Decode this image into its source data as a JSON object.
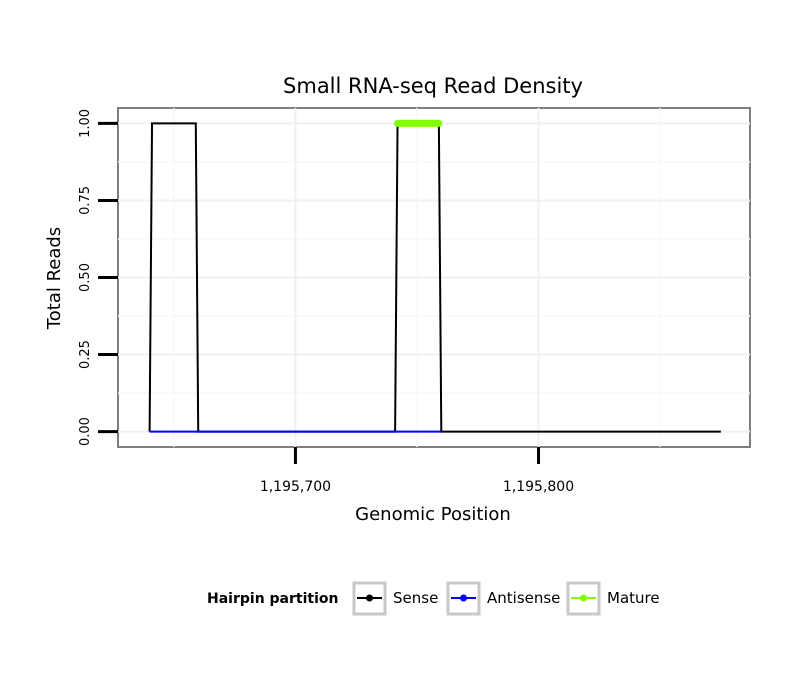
{
  "chart_data": {
    "type": "line",
    "title": "Small RNA-seq Read Density",
    "xlabel": "Genomic Position",
    "ylabel": "Total Reads",
    "xlim": [
      1195627,
      1195887
    ],
    "ylim": [
      -0.05,
      1.05
    ],
    "x_ticks": [
      1195700,
      1195800
    ],
    "x_tick_labels": [
      "1,195,700",
      "1,195,800"
    ],
    "y_ticks": [
      0,
      0.25,
      0.5,
      0.75,
      1.0
    ],
    "y_tick_labels": [
      "0.00",
      "0.25",
      "0.50",
      "0.75",
      "1.00"
    ],
    "grid": true,
    "legend": {
      "title": "Hairpin partition",
      "position": "bottom",
      "entries": [
        "Sense",
        "Antisense",
        "Mature"
      ]
    },
    "series": [
      {
        "name": "Sense",
        "color": "#000000",
        "x": [
          1195640,
          1195641,
          1195659,
          1195660,
          1195741,
          1195742,
          1195759,
          1195760,
          1195875
        ],
        "y": [
          0,
          1,
          1,
          0,
          0,
          1,
          1,
          0,
          0
        ]
      },
      {
        "name": "Antisense",
        "color": "#0000ff",
        "x": [
          1195640,
          1195660,
          1195741,
          1195760
        ],
        "y": [
          0,
          0,
          0,
          0
        ]
      },
      {
        "name": "Mature",
        "color": "#7fff00",
        "x": [
          1195742,
          1195759
        ],
        "y": [
          1,
          1
        ]
      }
    ]
  }
}
